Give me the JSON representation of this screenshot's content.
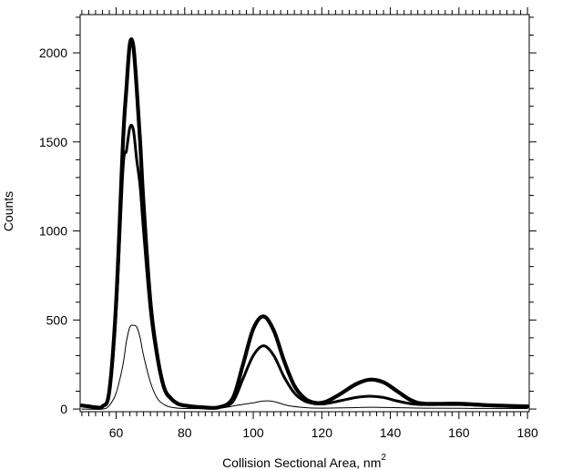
{
  "chart_data": {
    "type": "line",
    "title": "",
    "xlabel": "Collision Sectional Area, nm",
    "xlabel_superscript": "2",
    "ylabel": "Counts",
    "xlim": [
      49.5,
      180.5
    ],
    "ylim": [
      -15,
      2215
    ],
    "x_ticks": [
      60,
      80,
      100,
      120,
      140,
      160,
      180
    ],
    "y_ticks": [
      0,
      500,
      1000,
      1500,
      2000
    ],
    "x_minor_step": 2,
    "y_minor_step": 100,
    "grid": false,
    "color": "#000000",
    "series": [
      {
        "style": "thick",
        "points": [
          [
            50,
            20
          ],
          [
            52,
            15
          ],
          [
            54,
            10
          ],
          [
            56,
            15
          ],
          [
            58,
            100
          ],
          [
            60,
            600
          ],
          [
            62,
            1500
          ],
          [
            63,
            1800
          ],
          [
            64,
            2050
          ],
          [
            65,
            2040
          ],
          [
            66,
            1800
          ],
          [
            67,
            1500
          ],
          [
            68,
            1150
          ],
          [
            70,
            600
          ],
          [
            72,
            300
          ],
          [
            74,
            120
          ],
          [
            76,
            60
          ],
          [
            78,
            30
          ],
          [
            80,
            20
          ],
          [
            85,
            10
          ],
          [
            90,
            10
          ],
          [
            94,
            60
          ],
          [
            97,
            250
          ],
          [
            100,
            450
          ],
          [
            103,
            520
          ],
          [
            106,
            440
          ],
          [
            109,
            270
          ],
          [
            112,
            130
          ],
          [
            115,
            60
          ],
          [
            118,
            35
          ],
          [
            121,
            40
          ],
          [
            125,
            80
          ],
          [
            130,
            140
          ],
          [
            134,
            165
          ],
          [
            138,
            150
          ],
          [
            142,
            100
          ],
          [
            146,
            50
          ],
          [
            150,
            30
          ],
          [
            160,
            30
          ],
          [
            170,
            20
          ],
          [
            180,
            15
          ]
        ]
      },
      {
        "style": "medium",
        "points": [
          [
            50,
            20
          ],
          [
            52,
            15
          ],
          [
            54,
            10
          ],
          [
            56,
            15
          ],
          [
            58,
            90
          ],
          [
            60,
            550
          ],
          [
            62,
            1350
          ],
          [
            63,
            1450
          ],
          [
            64,
            1580
          ],
          [
            65,
            1570
          ],
          [
            66,
            1400
          ],
          [
            67,
            1250
          ],
          [
            68,
            1000
          ],
          [
            70,
            550
          ],
          [
            72,
            280
          ],
          [
            74,
            110
          ],
          [
            76,
            55
          ],
          [
            78,
            30
          ],
          [
            80,
            20
          ],
          [
            85,
            10
          ],
          [
            90,
            10
          ],
          [
            94,
            40
          ],
          [
            97,
            170
          ],
          [
            100,
            300
          ],
          [
            103,
            355
          ],
          [
            106,
            300
          ],
          [
            109,
            180
          ],
          [
            112,
            90
          ],
          [
            115,
            45
          ],
          [
            118,
            30
          ],
          [
            121,
            30
          ],
          [
            125,
            45
          ],
          [
            130,
            65
          ],
          [
            134,
            72
          ],
          [
            138,
            65
          ],
          [
            142,
            45
          ],
          [
            146,
            30
          ],
          [
            150,
            25
          ],
          [
            160,
            25
          ],
          [
            170,
            18
          ],
          [
            180,
            12
          ]
        ]
      },
      {
        "style": "thin",
        "points": [
          [
            50,
            0
          ],
          [
            56,
            0
          ],
          [
            58,
            20
          ],
          [
            60,
            90
          ],
          [
            62,
            250
          ],
          [
            63,
            380
          ],
          [
            64,
            460
          ],
          [
            65,
            470
          ],
          [
            66,
            460
          ],
          [
            67,
            400
          ],
          [
            68,
            300
          ],
          [
            70,
            150
          ],
          [
            72,
            60
          ],
          [
            74,
            25
          ],
          [
            76,
            10
          ],
          [
            80,
            3
          ],
          [
            90,
            5
          ],
          [
            95,
            20
          ],
          [
            100,
            35
          ],
          [
            103,
            45
          ],
          [
            106,
            42
          ],
          [
            110,
            20
          ],
          [
            115,
            8
          ],
          [
            120,
            5
          ],
          [
            130,
            8
          ],
          [
            135,
            10
          ],
          [
            150,
            5
          ],
          [
            180,
            3
          ]
        ]
      }
    ]
  }
}
